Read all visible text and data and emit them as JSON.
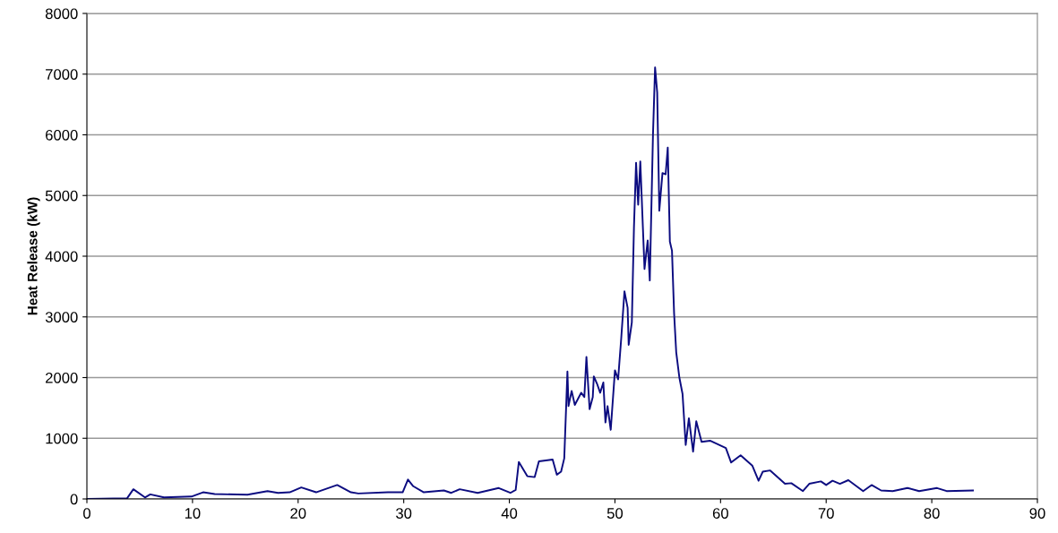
{
  "chart_data": {
    "type": "line",
    "ylabel": "Heat Release (kW)",
    "x": [
      0,
      3.8,
      4.4,
      5.5,
      6.0,
      7.3,
      9.9,
      11.0,
      12.1,
      15.2,
      17.1,
      18.1,
      19.2,
      20.3,
      21.7,
      23.7,
      25.0,
      25.7,
      28.5,
      29.9,
      30.4,
      30.9,
      31.9,
      33.8,
      34.5,
      35.3,
      37.0,
      39.0,
      40.1,
      40.6,
      40.9,
      41.7,
      42.4,
      42.8,
      44.1,
      44.5,
      44.9,
      45.2,
      45.5,
      45.6,
      45.9,
      46.2,
      46.8,
      47.1,
      47.3,
      47.6,
      47.9,
      48.0,
      48.3,
      48.6,
      48.9,
      49.1,
      49.3,
      49.6,
      50.0,
      50.3,
      50.6,
      50.9,
      51.2,
      51.3,
      51.6,
      51.8,
      52.0,
      52.2,
      52.4,
      52.8,
      53.1,
      53.3,
      53.6,
      53.8,
      54.0,
      54.2,
      54.5,
      54.8,
      55.0,
      55.2,
      55.4,
      55.6,
      55.8,
      56.1,
      56.4,
      56.7,
      57.0,
      57.4,
      57.7,
      58.2,
      59.0,
      60.5,
      61.0,
      61.9,
      63.0,
      63.6,
      64.0,
      64.7,
      66.1,
      66.7,
      67.8,
      68.4,
      69.5,
      70.0,
      70.6,
      71.3,
      72.1,
      73.5,
      74.3,
      75.2,
      76.3,
      77.7,
      78.8,
      80.5,
      81.4,
      83.9
    ],
    "series": [
      {
        "color": "#0c0c80",
        "values": [
          0,
          10,
          160,
          25,
          75,
          25,
          40,
          110,
          80,
          70,
          130,
          100,
          110,
          190,
          110,
          230,
          110,
          90,
          110,
          110,
          320,
          210,
          110,
          140,
          100,
          160,
          100,
          180,
          100,
          150,
          610,
          375,
          360,
          620,
          650,
          400,
          450,
          670,
          2100,
          1530,
          1780,
          1550,
          1750,
          1680,
          2340,
          1480,
          1680,
          2020,
          1900,
          1750,
          1920,
          1260,
          1530,
          1140,
          2120,
          1970,
          2660,
          3420,
          3150,
          2540,
          2910,
          4480,
          5540,
          4850,
          5560,
          3790,
          4260,
          3600,
          6000,
          7110,
          6700,
          4750,
          5370,
          5350,
          5790,
          4240,
          4090,
          3060,
          2420,
          2000,
          1730,
          890,
          1330,
          780,
          1280,
          940,
          960,
          840,
          600,
          720,
          550,
          300,
          450,
          470,
          250,
          260,
          130,
          250,
          290,
          230,
          300,
          250,
          310,
          130,
          230,
          140,
          130,
          180,
          130,
          180,
          130,
          140
        ]
      }
    ],
    "xlim": [
      0,
      90
    ],
    "xticks": [
      0,
      10,
      20,
      30,
      40,
      50,
      60,
      70,
      80,
      90
    ],
    "ylim": [
      0,
      8000
    ],
    "yticks": [
      0,
      1000,
      2000,
      3000,
      4000,
      5000,
      6000,
      7000,
      8000
    ],
    "grid": "y",
    "legend": false,
    "marker": "none",
    "line_style": "solid"
  }
}
